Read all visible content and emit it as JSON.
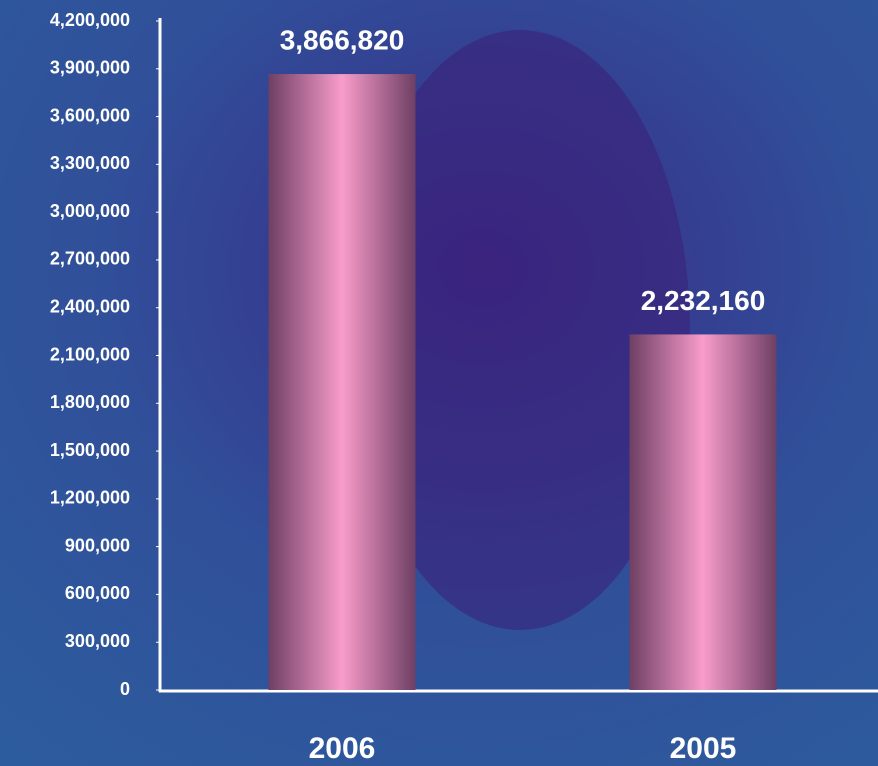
{
  "chart_data": {
    "type": "bar",
    "categories": [
      "2006",
      "2005"
    ],
    "values": [
      3866820,
      2232160
    ],
    "value_labels": [
      "3,866,820",
      "2,232,160"
    ],
    "color": "#f99ccb",
    "ylim": [
      0,
      4200000
    ],
    "yticks": [
      0,
      {
        "value": 300000,
        "label": "300,000"
      },
      {
        "value": 600000,
        "label": "600,000"
      },
      {
        "value": 900000,
        "label": "900,000"
      },
      {
        "value": 1200000,
        "label": "1,200,000"
      },
      {
        "value": 1500000,
        "label": "1,500,000"
      },
      {
        "value": 1800000,
        "label": "1,800,000"
      },
      {
        "value": 2100000,
        "label": "2,100,000"
      },
      {
        "value": 2400000,
        "label": "2,400,000"
      },
      {
        "value": 2700000,
        "label": "2,700,000"
      },
      {
        "value": 3000000,
        "label": "3,000,000"
      },
      {
        "value": 3300000,
        "label": "3,300,000"
      },
      {
        "value": 3600000,
        "label": "3,600,000"
      },
      {
        "value": 3900000,
        "label": "3,900,000"
      },
      {
        "value": 4200000,
        "label": "4,200,000"
      }
    ]
  }
}
